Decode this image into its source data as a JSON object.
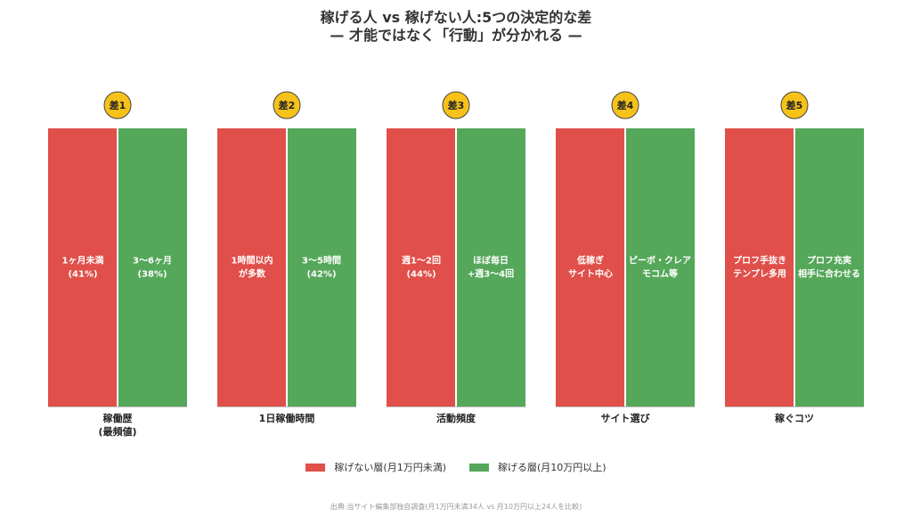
{
  "title": "稼げる人 vs 稼げない人:5つの決定的な差",
  "subtitle": "— 才能ではなく「行動」が分かれる —",
  "colors": {
    "red": "#e04f4a",
    "green": "#55a75a",
    "badge": "#f6c219",
    "badge_border": "#444444"
  },
  "chart_data": {
    "type": "bar",
    "title": "稼げる人 vs 稼げない人:5つの決定的な差",
    "subtitle": "— 才能ではなく「行動」が分かれる —",
    "categories": [
      "稼働歴\n(最頻値)",
      "1日稼働時間",
      "活動頻度",
      "サイト選び",
      "稼ぐコツ"
    ],
    "badges": [
      "差1",
      "差2",
      "差3",
      "差4",
      "差5"
    ],
    "series": [
      {
        "name": "稼げない層(月1万円未満)",
        "labels": [
          "1ヶ月未満\n(41%)",
          "1時間以内\nが多数",
          "週1〜2回\n(44%)",
          "低稼ぎ\nサイト中心",
          "プロフ手抜き\nテンプレ多用"
        ]
      },
      {
        "name": "稼げる層(月10万円以上)",
        "labels": [
          "3〜6ヶ月\n(38%)",
          "3〜5時間\n(42%)",
          "ほぼ毎日\n+週3〜4回",
          "ピーボ・クレア\nモコム等",
          "プロフ充実\n相手に合わせる"
        ]
      }
    ],
    "legend": "bottom"
  },
  "legend": {
    "red_label": "稼げない層(月1万円未満)",
    "green_label": "稼げる層(月10万円以上)"
  },
  "source": "出典:当サイト編集部独自調査(月1万円未満34人 vs 月10万円以上24人を比較)"
}
